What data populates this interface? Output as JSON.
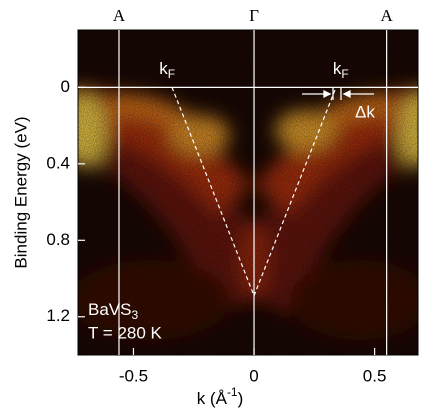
{
  "chart_data": {
    "type": "intensity-map",
    "xlabel": {
      "text": "k (Å",
      "sup": "-1",
      "end": ")"
    },
    "ylabel": "Binding Energy (eV)",
    "xlim": [
      -0.73,
      0.68
    ],
    "ylim": [
      -0.3,
      1.4
    ],
    "xticks": [
      -0.5,
      0,
      0.5
    ],
    "yticks": [
      0,
      0.4,
      0.8,
      1.2
    ],
    "symmetry_points": [
      {
        "label": "A",
        "x": -0.56
      },
      {
        "label": "Γ",
        "x": 0
      },
      {
        "label": "A",
        "x": 0.55
      }
    ],
    "fermi_level": 0,
    "kf_path": {
      "x": [
        -0.34,
        0,
        0.34
      ],
      "y": [
        0,
        1.09,
        0
      ]
    },
    "kf_labels": [
      {
        "text": "k",
        "sub": "F",
        "x": -0.36
      },
      {
        "text": "k",
        "sub": "F",
        "x": 0.36
      }
    ],
    "delta_k_label": "Δk",
    "sample": {
      "text": "BaVS",
      "sub": "3"
    },
    "temperature": "T = 280 K"
  }
}
